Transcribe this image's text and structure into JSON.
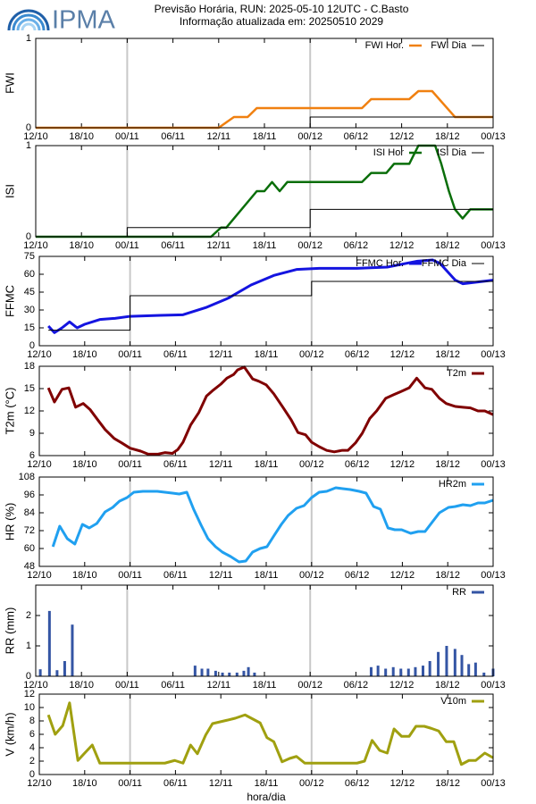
{
  "logo": "IPMA",
  "title": "Previsão Horária, RUN: 2025-05-10 12UTC - C.Basto",
  "subtitle": "Informação atualizada em: 20250510 2029",
  "xlabel": "hora/dia",
  "chart_data": [
    {
      "type": "line",
      "ylabel": "FWI",
      "xlim": [
        0,
        60
      ],
      "ylim": [
        0,
        1
      ],
      "yticks": [
        0,
        1
      ],
      "xticks": [
        {
          "value": 0,
          "label": "12/10"
        },
        {
          "value": 6,
          "label": "18/10"
        },
        {
          "value": 12,
          "label": "00/11"
        },
        {
          "value": 18,
          "label": "06/11"
        },
        {
          "value": 24,
          "label": "12/11"
        },
        {
          "value": 30,
          "label": "18/11"
        },
        {
          "value": 36,
          "label": "00/12"
        },
        {
          "value": 42,
          "label": "06/12"
        },
        {
          "value": 48,
          "label": "12/12"
        },
        {
          "value": 54,
          "label": "18/12"
        },
        {
          "value": 60,
          "label": "00/13"
        }
      ],
      "vlines": [
        12,
        36
      ],
      "series": [
        {
          "name": "FWI Hor.",
          "color": "#f08010",
          "width": 2.5,
          "x": [
            0,
            24,
            26,
            27.8,
            29,
            42.8,
            44,
            49,
            50.2,
            52,
            55,
            60
          ],
          "values": [
            0,
            0,
            0.12,
            0.12,
            0.22,
            0.22,
            0.32,
            0.32,
            0.41,
            0.41,
            0.12,
            0.12
          ]
        },
        {
          "name": "FWI Dia",
          "color": "#000000",
          "width": 1,
          "step": true,
          "x": [
            0,
            36,
            60
          ],
          "values": [
            0,
            0.12,
            0.12
          ]
        }
      ]
    },
    {
      "type": "line",
      "ylabel": "ISI",
      "xlim": [
        0,
        60
      ],
      "ylim": [
        0,
        1
      ],
      "yticks": [
        0,
        1
      ],
      "xticks": [
        {
          "value": 0,
          "label": "12/10"
        },
        {
          "value": 6,
          "label": "18/10"
        },
        {
          "value": 12,
          "label": "00/11"
        },
        {
          "value": 18,
          "label": "06/11"
        },
        {
          "value": 24,
          "label": "12/11"
        },
        {
          "value": 30,
          "label": "18/11"
        },
        {
          "value": 36,
          "label": "00/12"
        },
        {
          "value": 42,
          "label": "06/12"
        },
        {
          "value": 48,
          "label": "12/12"
        },
        {
          "value": 54,
          "label": "18/12"
        },
        {
          "value": 60,
          "label": "00/13"
        }
      ],
      "vlines": [
        12,
        36
      ],
      "series": [
        {
          "name": "ISI Hor",
          "color": "#0a6e0a",
          "width": 2.5,
          "x": [
            0,
            23,
            24.3,
            25,
            29,
            30,
            31,
            32,
            33,
            42.8,
            44,
            46,
            47,
            49,
            50.2,
            52.4,
            53.2,
            54.2,
            55,
            56,
            57,
            60
          ],
          "values": [
            0,
            0,
            0.1,
            0.1,
            0.5,
            0.5,
            0.6,
            0.5,
            0.6,
            0.6,
            0.7,
            0.7,
            0.8,
            0.8,
            1,
            1,
            0.8,
            0.5,
            0.3,
            0.2,
            0.3,
            0.3
          ]
        },
        {
          "name": "ISI Dia",
          "color": "#000000",
          "width": 1,
          "step": true,
          "x": [
            0,
            12,
            36,
            60
          ],
          "values": [
            0,
            0.1,
            0.3,
            0.3
          ]
        }
      ]
    },
    {
      "type": "line",
      "ylabel": "FFMC",
      "xlim": [
        0,
        60
      ],
      "ylim": [
        0,
        75
      ],
      "yticks": [
        0,
        15,
        30,
        45,
        60,
        75
      ],
      "xticks": [
        {
          "value": 0,
          "label": "12/10"
        },
        {
          "value": 6,
          "label": "18/10"
        },
        {
          "value": 12,
          "label": "00/11"
        },
        {
          "value": 18,
          "label": "06/11"
        },
        {
          "value": 24,
          "label": "12/11"
        },
        {
          "value": 30,
          "label": "18/11"
        },
        {
          "value": 36,
          "label": "00/12"
        },
        {
          "value": 42,
          "label": "06/12"
        },
        {
          "value": 48,
          "label": "12/12"
        },
        {
          "value": 54,
          "label": "18/12"
        },
        {
          "value": 60,
          "label": "00/13"
        }
      ],
      "vlines": [
        12,
        36
      ],
      "series": [
        {
          "name": "FFMC Hor.",
          "color": "#1414e0",
          "width": 3,
          "x": [
            1.2,
            2,
            3,
            4,
            5,
            6,
            8,
            10,
            12,
            16,
            19,
            22,
            25,
            28,
            31,
            34,
            37,
            42,
            46,
            50,
            52,
            53,
            55,
            56,
            58,
            60
          ],
          "values": [
            16.5,
            11,
            15,
            20,
            15,
            18,
            22,
            23,
            24.7,
            25.5,
            26,
            32,
            40,
            51,
            59,
            64,
            65,
            65,
            66,
            71,
            72,
            69,
            55,
            52,
            53.5,
            55
          ]
        },
        {
          "name": "FFMC Dia",
          "color": "#000000",
          "width": 1,
          "step": true,
          "x": [
            1.2,
            12,
            36,
            60
          ],
          "values": [
            13,
            42,
            54,
            54
          ]
        }
      ]
    },
    {
      "type": "line",
      "ylabel": "T2m (°C)",
      "xlim": [
        0,
        60
      ],
      "ylim": [
        6,
        18
      ],
      "yticks": [
        6,
        9,
        12,
        15,
        18
      ],
      "xticks": [
        {
          "value": 0,
          "label": "12/10"
        },
        {
          "value": 6,
          "label": "18/10"
        },
        {
          "value": 12,
          "label": "00/11"
        },
        {
          "value": 18,
          "label": "06/11"
        },
        {
          "value": 24,
          "label": "12/11"
        },
        {
          "value": 30,
          "label": "18/11"
        },
        {
          "value": 36,
          "label": "00/12"
        },
        {
          "value": 42,
          "label": "06/12"
        },
        {
          "value": 48,
          "label": "12/12"
        },
        {
          "value": 54,
          "label": "18/12"
        },
        {
          "value": 60,
          "label": "00/13"
        }
      ],
      "vlines": [
        12,
        36
      ],
      "series": [
        {
          "name": "T2m",
          "color": "#800000",
          "width": 3,
          "x": [
            1.2,
            2,
            3,
            3.9,
            4.8,
            5.8,
            6.7,
            7.8,
            8.7,
            9.9,
            10.9,
            12,
            13.4,
            14.4,
            15.7,
            16.6,
            17.6,
            18.3,
            19,
            20,
            21.1,
            22.1,
            23,
            24,
            24.8,
            25.7,
            26.2,
            27.1,
            28.2,
            29,
            30,
            31,
            32.2,
            33.3,
            34.2,
            35.2,
            36,
            37,
            38,
            39,
            40,
            40.8,
            41.8,
            42.7,
            43.7,
            44.6,
            45.8,
            46.9,
            47.8,
            48.9,
            49.9,
            51,
            51.9,
            52.9,
            53.8,
            55,
            56,
            57,
            58,
            58.9,
            60
          ],
          "values": [
            15.1,
            13.2,
            14.9,
            15.1,
            12.5,
            13,
            12.2,
            10.7,
            9.5,
            8.3,
            7.7,
            7,
            6.6,
            6.2,
            6.2,
            6.4,
            6.3,
            6.8,
            7.8,
            10.1,
            11.8,
            14,
            14.8,
            15.6,
            16.4,
            16.9,
            17.5,
            17.9,
            16.3,
            16,
            15.5,
            14.3,
            12.5,
            10.8,
            9.1,
            8.8,
            7.8,
            7.2,
            6.7,
            6.5,
            6.7,
            6.7,
            7.7,
            9,
            11,
            12,
            13.7,
            14.2,
            14.6,
            15.1,
            16.4,
            15.1,
            14.9,
            13.7,
            13,
            12.6,
            12.5,
            12.4,
            12,
            12,
            11.5
          ]
        }
      ]
    },
    {
      "type": "line",
      "ylabel": "HR (%)",
      "xlim": [
        0,
        60
      ],
      "ylim": [
        48,
        108
      ],
      "yticks": [
        48,
        60,
        72,
        84,
        96,
        108
      ],
      "xticks": [
        {
          "value": 0,
          "label": "12/10"
        },
        {
          "value": 6,
          "label": "18/10"
        },
        {
          "value": 12,
          "label": "00/11"
        },
        {
          "value": 18,
          "label": "06/11"
        },
        {
          "value": 24,
          "label": "12/11"
        },
        {
          "value": 30,
          "label": "18/11"
        },
        {
          "value": 36,
          "label": "00/12"
        },
        {
          "value": 42,
          "label": "06/12"
        },
        {
          "value": 48,
          "label": "12/12"
        },
        {
          "value": 54,
          "label": "18/12"
        },
        {
          "value": 60,
          "label": "00/13"
        }
      ],
      "vlines": [
        12,
        36
      ],
      "series": [
        {
          "name": "HR2m",
          "color": "#20a0f0",
          "width": 3,
          "x": [
            1.8,
            2.7,
            3.7,
            4.7,
            5.7,
            6.6,
            7.6,
            8.7,
            9.7,
            10.6,
            11.6,
            12.5,
            13.7,
            15.6,
            17.6,
            18.5,
            19.5,
            20.4,
            21.4,
            22.3,
            23.3,
            24.2,
            25.3,
            26.4,
            27.3,
            28.2,
            29.2,
            30.1,
            31,
            32,
            32.9,
            34,
            35,
            36,
            37,
            38,
            39.2,
            40.1,
            41.1,
            42.3,
            43.2,
            44.2,
            45.1,
            46.1,
            47,
            47.9,
            49.1,
            50.1,
            51,
            51.9,
            52.9,
            54.1,
            55,
            56,
            57,
            58,
            58.9,
            60
          ],
          "values": [
            61.2,
            75,
            66.6,
            63,
            76.2,
            73.8,
            76.8,
            84.6,
            87.6,
            91.8,
            94.2,
            97.8,
            98.4,
            98.4,
            97.2,
            96.6,
            97.8,
            86.4,
            75.6,
            66.6,
            61.2,
            57.6,
            54.6,
            51,
            51.6,
            57.6,
            60,
            61.2,
            68.4,
            76.2,
            82.2,
            87,
            88.8,
            94.2,
            97.8,
            98.4,
            100.8,
            100.2,
            99.6,
            98.4,
            97.2,
            88.2,
            86.4,
            73.8,
            72.6,
            72.6,
            70.2,
            71.4,
            71.4,
            77.4,
            84,
            87.6,
            88.2,
            89.4,
            88.8,
            90.6,
            90.6,
            92.4
          ]
        }
      ]
    },
    {
      "type": "bar",
      "ylabel": "RR (mm)",
      "xlim": [
        0,
        60
      ],
      "ylim": [
        0,
        3
      ],
      "yticks": [
        0,
        1,
        2
      ],
      "xticks": [
        {
          "value": 0,
          "label": "12/10"
        },
        {
          "value": 6,
          "label": "18/10"
        },
        {
          "value": 12,
          "label": "00/11"
        },
        {
          "value": 18,
          "label": "06/11"
        },
        {
          "value": 24,
          "label": "12/11"
        },
        {
          "value": 30,
          "label": "18/11"
        },
        {
          "value": 36,
          "label": "00/12"
        },
        {
          "value": 42,
          "label": "06/12"
        },
        {
          "value": 48,
          "label": "12/12"
        },
        {
          "value": 54,
          "label": "18/12"
        },
        {
          "value": 60,
          "label": "00/13"
        }
      ],
      "vlines": [
        12,
        36
      ],
      "series": [
        {
          "name": "RR",
          "color": "#3455a4",
          "x": [
            0.6,
            1.8,
            2.8,
            3.8,
            4.8,
            20.9,
            21.8,
            22.6,
            23.6,
            24.5,
            25.4,
            26.4,
            27.3,
            27.9,
            28.7,
            44,
            44.9,
            45.9,
            46.9,
            47.9,
            48.9,
            49.8,
            50.8,
            51.7,
            52.8,
            53.9,
            55,
            55.9,
            56.8,
            57.7,
            58.8,
            60
          ],
          "values": [
            0.23,
            2.15,
            0.2,
            0.5,
            1.7,
            0.35,
            0.25,
            0.25,
            0.18,
            0.12,
            0.12,
            0.12,
            0.18,
            0.3,
            0.12,
            0.3,
            0.35,
            0.25,
            0.3,
            0.25,
            0.25,
            0.3,
            0.35,
            0.5,
            0.8,
            1,
            0.9,
            0.7,
            0.4,
            0.45,
            0.12,
            0.25
          ]
        }
      ]
    },
    {
      "type": "line",
      "ylabel": "V (km/h)",
      "xlim": [
        0,
        60
      ],
      "ylim": [
        0,
        12
      ],
      "yticks": [
        0,
        2,
        4,
        6,
        8,
        10,
        12
      ],
      "xticks": [
        {
          "value": 0,
          "label": "12/10"
        },
        {
          "value": 6,
          "label": "18/10"
        },
        {
          "value": 12,
          "label": "00/11"
        },
        {
          "value": 18,
          "label": "06/11"
        },
        {
          "value": 24,
          "label": "12/11"
        },
        {
          "value": 30,
          "label": "18/11"
        },
        {
          "value": 36,
          "label": "00/12"
        },
        {
          "value": 42,
          "label": "06/12"
        },
        {
          "value": 48,
          "label": "12/12"
        },
        {
          "value": 54,
          "label": "18/12"
        },
        {
          "value": 60,
          "label": "00/13"
        }
      ],
      "vlines": [
        12,
        36
      ],
      "series": [
        {
          "name": "V10m",
          "color": "#a0a010",
          "width": 3,
          "x": [
            1.2,
            2.1,
            3.1,
            4,
            5.1,
            6,
            7,
            8,
            9,
            16.6,
            17.9,
            19,
            20,
            20.9,
            22,
            22.9,
            24.8,
            25.9,
            27.2,
            28.2,
            29.2,
            30.1,
            31,
            32.1,
            33.1,
            34,
            35.1,
            42,
            43,
            44,
            45,
            46,
            46.9,
            47.9,
            48.9,
            49.8,
            50.9,
            51.8,
            52.8,
            53.8,
            54.8,
            55.8,
            56.8,
            57.7,
            58.9,
            60
          ],
          "values": [
            8.9,
            6,
            7.3,
            10.7,
            2.1,
            3.2,
            4.4,
            1.7,
            1.7,
            1.7,
            2.1,
            1.7,
            4.4,
            3.1,
            5.9,
            7.6,
            8.1,
            8.4,
            8.9,
            8.3,
            7.7,
            5.5,
            4.9,
            1.9,
            2.4,
            2.7,
            1.7,
            1.7,
            2,
            5.1,
            3.6,
            3.2,
            6.8,
            5.7,
            5.7,
            7.2,
            7.2,
            6.9,
            6.5,
            4.9,
            4.9,
            1.5,
            2.1,
            2.1,
            3.2,
            2.5
          ]
        }
      ]
    }
  ]
}
